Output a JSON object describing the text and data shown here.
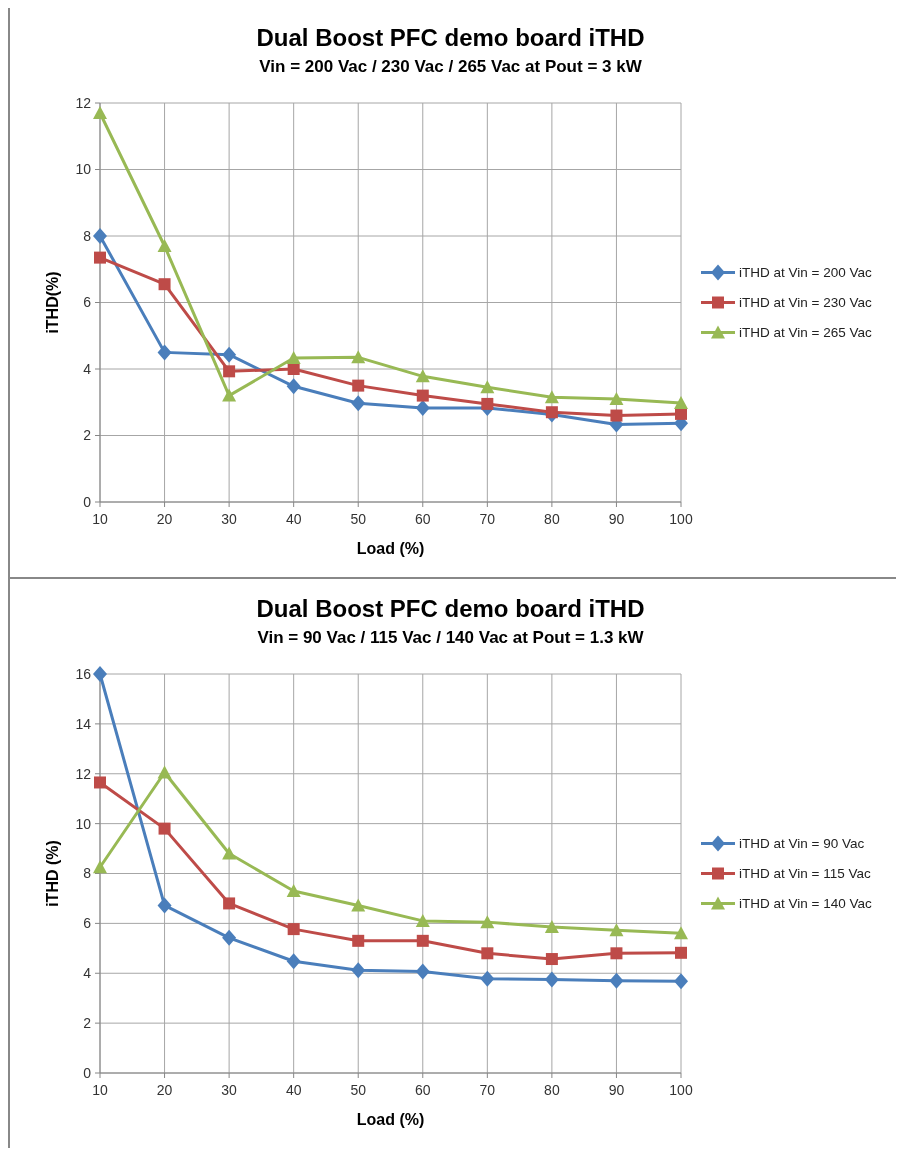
{
  "chart_data": [
    {
      "type": "line",
      "title": "Dual Boost PFC demo board iTHD",
      "subtitle": "Vin = 200 Vac / 230 Vac / 265 Vac at Pout = 3 kW",
      "xlabel": "Load (%)",
      "ylabel": "iTHD(%)",
      "x": [
        10,
        20,
        30,
        40,
        50,
        60,
        70,
        80,
        90,
        100
      ],
      "xlim": [
        10,
        100
      ],
      "xticks": [
        10,
        20,
        30,
        40,
        50,
        60,
        70,
        80,
        90,
        100
      ],
      "ylim": [
        0,
        12
      ],
      "yticks": [
        0,
        2,
        4,
        6,
        8,
        10,
        12
      ],
      "grid": true,
      "legend": "right",
      "series": [
        {
          "name": "iTHD at Vin = 200 Vac",
          "color": "#4a7ebb",
          "marker": "diamond",
          "values": [
            8.0,
            4.5,
            4.43,
            3.48,
            2.97,
            2.83,
            2.83,
            2.63,
            2.33,
            2.37
          ]
        },
        {
          "name": "iTHD at Vin = 230 Vac",
          "color": "#be4b48",
          "marker": "square",
          "values": [
            7.35,
            6.55,
            3.93,
            4.0,
            3.5,
            3.2,
            2.95,
            2.7,
            2.6,
            2.65
          ]
        },
        {
          "name": "iTHD at Vin = 265 Vac",
          "color": "#98b954",
          "marker": "triangle",
          "values": [
            11.7,
            7.7,
            3.2,
            4.33,
            4.35,
            3.78,
            3.45,
            3.15,
            3.1,
            2.98
          ]
        }
      ]
    },
    {
      "type": "line",
      "title": "Dual Boost PFC demo board iTHD",
      "subtitle": "Vin = 90 Vac / 115 Vac / 140 Vac at Pout = 1.3 kW",
      "xlabel": "Load (%)",
      "ylabel": "iTHD (%)",
      "x": [
        10,
        20,
        30,
        40,
        50,
        60,
        70,
        80,
        90,
        100
      ],
      "xlim": [
        10,
        100
      ],
      "xticks": [
        10,
        20,
        30,
        40,
        50,
        60,
        70,
        80,
        90,
        100
      ],
      "ylim": [
        0,
        16
      ],
      "yticks": [
        0,
        2,
        4,
        6,
        8,
        10,
        12,
        14,
        16
      ],
      "grid": true,
      "legend": "right",
      "series": [
        {
          "name": "iTHD at Vin = 90 Vac",
          "color": "#4a7ebb",
          "marker": "diamond",
          "values": [
            16.0,
            6.72,
            5.42,
            4.48,
            4.12,
            4.07,
            3.78,
            3.75,
            3.7,
            3.68
          ]
        },
        {
          "name": "iTHD at Vin = 115 Vac",
          "color": "#be4b48",
          "marker": "square",
          "values": [
            11.65,
            9.8,
            6.8,
            5.77,
            5.3,
            5.3,
            4.8,
            4.57,
            4.8,
            4.82
          ]
        },
        {
          "name": "iTHD at Vin = 140 Vac",
          "color": "#98b954",
          "marker": "triangle",
          "values": [
            8.25,
            12.05,
            8.8,
            7.3,
            6.72,
            6.1,
            6.05,
            5.85,
            5.72,
            5.6
          ]
        }
      ]
    }
  ]
}
